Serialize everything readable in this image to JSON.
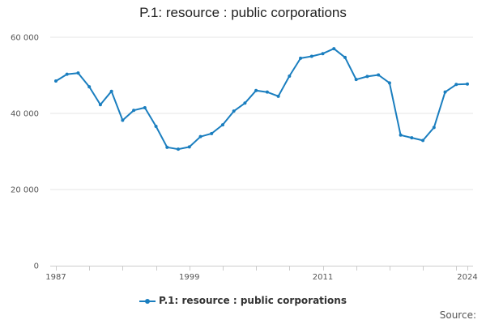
{
  "chart_data": {
    "type": "line",
    "title": "P.1: resource : public corporations",
    "x_ticks": [
      "1987",
      "1999",
      "2011",
      "2024"
    ],
    "y_ticks": [
      "0",
      "20 000",
      "40 000",
      "60 000"
    ],
    "ylim": [
      0,
      60000
    ],
    "xlim": [
      1987,
      2024
    ],
    "grid": "horizontal",
    "legend_position": "bottom",
    "source_label": "Source:",
    "series": [
      {
        "name": "P.1: resource : public corporations",
        "color": "#1a7ebf",
        "x": [
          1987,
          1988,
          1989,
          1990,
          1991,
          1992,
          1993,
          1994,
          1995,
          1996,
          1997,
          1998,
          1999,
          2000,
          2001,
          2002,
          2003,
          2004,
          2005,
          2006,
          2007,
          2008,
          2009,
          2010,
          2011,
          2012,
          2013,
          2014,
          2015,
          2016,
          2017,
          2018,
          2019,
          2020,
          2021,
          2022,
          2023,
          2024
        ],
        "values": [
          48500,
          50300,
          50600,
          47000,
          42300,
          45800,
          38200,
          40800,
          41500,
          36600,
          31100,
          30600,
          31200,
          33900,
          34700,
          37000,
          40600,
          42700,
          46000,
          45600,
          44500,
          49800,
          54500,
          55000,
          55700,
          57000,
          54700,
          48900,
          49700,
          50100,
          48000,
          34300,
          33600,
          32900,
          36300,
          45600,
          47600,
          47700
        ]
      }
    ]
  }
}
